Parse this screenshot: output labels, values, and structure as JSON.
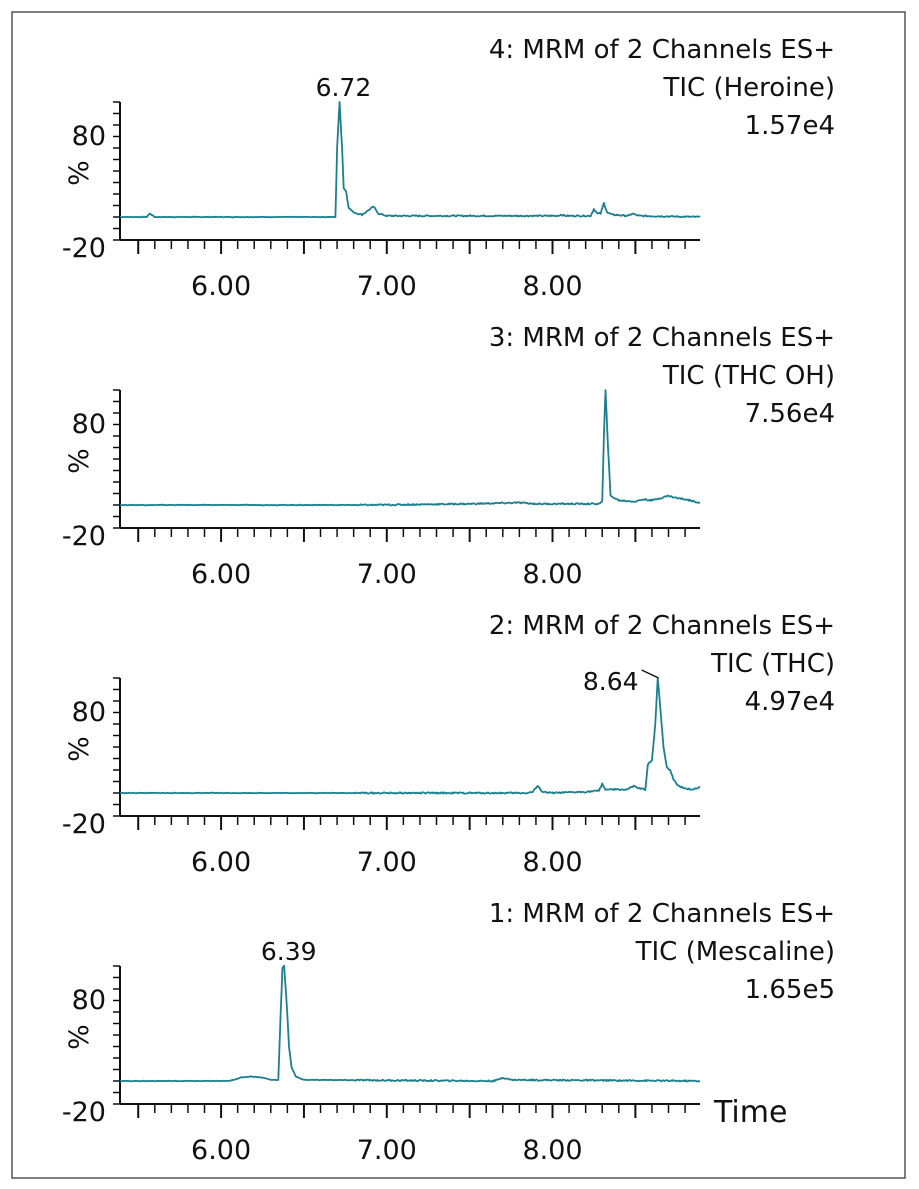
{
  "chart_data": [
    {
      "type": "line",
      "title_lines": [
        "4: MRM of 2 Channels ES+",
        "TIC (Heroine)",
        "1.57e4"
      ],
      "ylabel": "%",
      "xlabel": "",
      "xlim": [
        5.39,
        8.89
      ],
      "ylim": [
        -20,
        100
      ],
      "xticks": [
        "6.00",
        "7.00",
        "8.00"
      ],
      "yticks": [
        "80",
        "-20"
      ],
      "peak_label": {
        "text": "6.72",
        "x": 6.72,
        "leader": false
      },
      "color": "#1b7f8f",
      "points": [
        [
          5.39,
          0
        ],
        [
          5.55,
          0
        ],
        [
          5.57,
          3
        ],
        [
          5.6,
          0
        ],
        [
          6.69,
          0
        ],
        [
          6.7,
          60
        ],
        [
          6.715,
          100
        ],
        [
          6.73,
          60
        ],
        [
          6.74,
          25
        ],
        [
          6.755,
          22
        ],
        [
          6.77,
          8
        ],
        [
          6.8,
          4
        ],
        [
          6.85,
          2
        ],
        [
          6.9,
          7
        ],
        [
          6.92,
          9
        ],
        [
          6.95,
          3
        ],
        [
          7.0,
          1
        ],
        [
          7.1,
          1
        ],
        [
          8.03,
          1
        ],
        [
          8.05,
          2
        ],
        [
          8.08,
          1
        ],
        [
          8.23,
          1
        ],
        [
          8.25,
          7
        ],
        [
          8.27,
          3
        ],
        [
          8.29,
          3
        ],
        [
          8.31,
          12
        ],
        [
          8.33,
          4
        ],
        [
          8.36,
          2
        ],
        [
          8.46,
          1
        ],
        [
          8.48,
          3
        ],
        [
          8.52,
          1
        ],
        [
          8.89,
          0
        ]
      ]
    },
    {
      "type": "line",
      "title_lines": [
        "3: MRM of 2 Channels ES+",
        "TIC (THC OH)",
        "7.56e4"
      ],
      "ylabel": "%",
      "xlabel": "",
      "xlim": [
        5.39,
        8.89
      ],
      "ylim": [
        -20,
        100
      ],
      "xticks": [
        "6.00",
        "7.00",
        "8.00"
      ],
      "yticks": [
        "80",
        "-20"
      ],
      "peak_label": null,
      "color": "#1b7f8f",
      "points": [
        [
          5.39,
          0
        ],
        [
          6.9,
          0
        ],
        [
          7.5,
          1
        ],
        [
          7.8,
          2
        ],
        [
          7.9,
          1
        ],
        [
          8.28,
          1
        ],
        [
          8.3,
          3
        ],
        [
          8.31,
          60
        ],
        [
          8.32,
          100
        ],
        [
          8.335,
          50
        ],
        [
          8.35,
          8
        ],
        [
          8.4,
          4
        ],
        [
          8.5,
          3
        ],
        [
          8.55,
          5
        ],
        [
          8.6,
          4
        ],
        [
          8.7,
          8
        ],
        [
          8.75,
          6
        ],
        [
          8.8,
          5
        ],
        [
          8.89,
          2
        ]
      ]
    },
    {
      "type": "line",
      "title_lines": [
        "2: MRM of 2 Channels ES+",
        "TIC (THC)",
        "4.97e4"
      ],
      "ylabel": "%",
      "xlabel": "",
      "xlim": [
        5.39,
        8.89
      ],
      "ylim": [
        -20,
        100
      ],
      "xticks": [
        "6.00",
        "7.00",
        "8.00"
      ],
      "yticks": [
        "80",
        "-20"
      ],
      "peak_label": {
        "text": "8.64",
        "x": 8.64,
        "leader": true
      },
      "color": "#1b7f8f",
      "points": [
        [
          5.39,
          0
        ],
        [
          7.85,
          0
        ],
        [
          7.88,
          1
        ],
        [
          7.91,
          6
        ],
        [
          7.94,
          1
        ],
        [
          8.0,
          0
        ],
        [
          8.2,
          1
        ],
        [
          8.28,
          2
        ],
        [
          8.3,
          8
        ],
        [
          8.32,
          3
        ],
        [
          8.45,
          3
        ],
        [
          8.49,
          6
        ],
        [
          8.52,
          4
        ],
        [
          8.56,
          3
        ],
        [
          8.575,
          25
        ],
        [
          8.6,
          28
        ],
        [
          8.62,
          60
        ],
        [
          8.635,
          100
        ],
        [
          8.65,
          75
        ],
        [
          8.67,
          40
        ],
        [
          8.69,
          22
        ],
        [
          8.71,
          20
        ],
        [
          8.73,
          12
        ],
        [
          8.76,
          6
        ],
        [
          8.8,
          4
        ],
        [
          8.84,
          3
        ],
        [
          8.89,
          5
        ]
      ]
    },
    {
      "type": "line",
      "title_lines": [
        "1: MRM of 2 Channels ES+",
        "TIC (Mescaline)",
        "1.65e5"
      ],
      "ylabel": "%",
      "xlabel": "Time",
      "xlim": [
        5.39,
        8.89
      ],
      "ylim": [
        -20,
        100
      ],
      "xticks": [
        "6.00",
        "7.00",
        "8.00"
      ],
      "yticks": [
        "80",
        "-20"
      ],
      "peak_label": {
        "text": "6.39",
        "x": 6.39,
        "leader": false
      },
      "color": "#1b7f8f",
      "points": [
        [
          5.39,
          0
        ],
        [
          6.05,
          0
        ],
        [
          6.12,
          3
        ],
        [
          6.18,
          4
        ],
        [
          6.25,
          3
        ],
        [
          6.3,
          1
        ],
        [
          6.345,
          1
        ],
        [
          6.36,
          60
        ],
        [
          6.37,
          98
        ],
        [
          6.38,
          100
        ],
        [
          6.395,
          70
        ],
        [
          6.41,
          30
        ],
        [
          6.425,
          12
        ],
        [
          6.45,
          4
        ],
        [
          6.5,
          1
        ],
        [
          7.65,
          0
        ],
        [
          7.7,
          3
        ],
        [
          7.75,
          1
        ],
        [
          8.89,
          0
        ]
      ]
    }
  ]
}
